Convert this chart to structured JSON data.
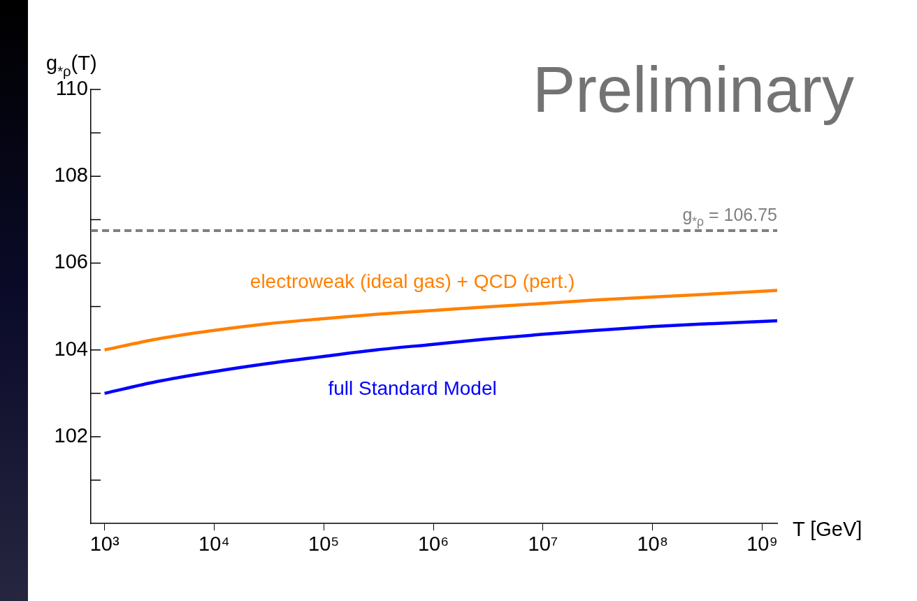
{
  "chart_data": {
    "type": "line",
    "xlabel": "T [GeV]",
    "ylabel": "g$_{*ρ}$(T)",
    "log": "x",
    "x": [
      1000,
      3000,
      10000,
      30000,
      100000,
      300000,
      1000000,
      3000000,
      10000000,
      30000000,
      100000000,
      300000000,
      1370000000
    ],
    "series": [
      {
        "name": "electroweak (ideal gas) + QCD (pert.)",
        "color": "#ff8000",
        "values": [
          104.0,
          104.25,
          104.45,
          104.6,
          104.72,
          104.82,
          104.91,
          104.99,
          105.07,
          105.15,
          105.22,
          105.28,
          105.37
        ]
      },
      {
        "name": "full Standard Model",
        "color": "#0000ff",
        "values": [
          103.0,
          103.27,
          103.5,
          103.68,
          103.85,
          104.0,
          104.13,
          104.25,
          104.36,
          104.45,
          104.54,
          104.6,
          104.67
        ]
      }
    ],
    "xlim": [
      750,
      1370000000
    ],
    "xticks": [
      {
        "value": 1000,
        "label": "10³"
      },
      {
        "value": 10000,
        "label": "10⁴"
      },
      {
        "value": 100000,
        "label": "10⁵"
      },
      {
        "value": 1000000,
        "label": "10⁶"
      },
      {
        "value": 10000000,
        "label": "10⁷"
      },
      {
        "value": 100000000,
        "label": "10⁸"
      },
      {
        "value": 1000000000,
        "label": "10⁹"
      }
    ],
    "ylim": [
      100,
      110
    ],
    "yticks": [
      {
        "value": 101,
        "label": null
      },
      102,
      {
        "value": 103,
        "label": null
      },
      104,
      {
        "value": 105,
        "label": null
      },
      106,
      {
        "value": 107,
        "label": null
      },
      108,
      {
        "value": 109,
        "label": null
      },
      110
    ],
    "ref_lines": [
      {
        "axis": "y",
        "value": 106.75,
        "label": "g$_{*ρ}$ = 106.75",
        "color": "#808080",
        "line_style": "dashed"
      }
    ],
    "annotations": [
      "Preliminary"
    ],
    "grid": false,
    "legend": false,
    "marker": "none",
    "line_style": "solid"
  }
}
